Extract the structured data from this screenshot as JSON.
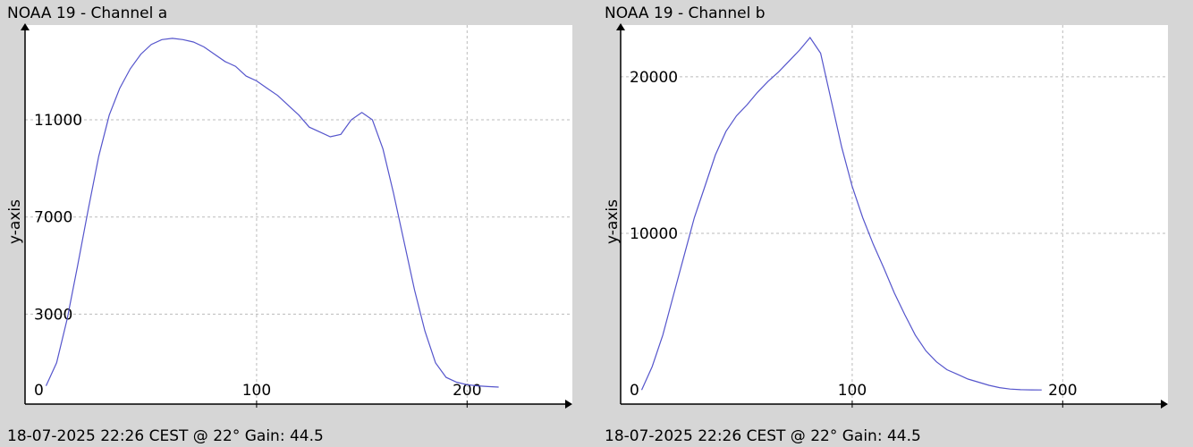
{
  "chart_data": [
    {
      "type": "line",
      "title": "NOAA 19 - Channel a",
      "ylabel": "y-axis",
      "xlim": [
        -10,
        250
      ],
      "ylim": [
        -700,
        14900
      ],
      "xticks": [
        0,
        100,
        200
      ],
      "yticks": [
        3000,
        7000,
        11000
      ],
      "grid": true,
      "line_color": "#5555cc",
      "footer": "18-07-2025 22:26 CEST @ 22° Gain: 44.5",
      "series": [
        {
          "x": [
            0,
            5,
            10,
            15,
            20,
            25,
            30,
            35,
            40,
            45,
            50,
            55,
            60,
            65,
            70,
            75,
            80,
            85,
            90,
            95,
            100,
            105,
            110,
            115,
            120,
            125,
            130,
            135,
            140,
            145,
            150,
            155,
            160,
            165,
            170,
            175,
            180,
            185,
            190,
            195,
            200,
            205,
            210,
            215
          ],
          "y": [
            50,
            1000,
            2800,
            5000,
            7300,
            9500,
            11200,
            12300,
            13100,
            13700,
            14100,
            14300,
            14350,
            14300,
            14200,
            14000,
            13700,
            13400,
            13200,
            12800,
            12600,
            12300,
            12000,
            11600,
            11200,
            10700,
            10500,
            10300,
            10400,
            11000,
            11300,
            11000,
            9800,
            8000,
            6000,
            4000,
            2300,
            1000,
            400,
            200,
            100,
            50,
            20,
            0
          ]
        }
      ]
    },
    {
      "type": "line",
      "title": "NOAA 19 - Channel b",
      "ylabel": "y-axis",
      "xlim": [
        -10,
        250
      ],
      "ylim": [
        -900,
        23300
      ],
      "xticks": [
        0,
        100,
        200
      ],
      "yticks": [
        10000,
        20000
      ],
      "grid": true,
      "line_color": "#5555cc",
      "footer": "18-07-2025 22:26 CEST @ 22° Gain: 44.5",
      "series": [
        {
          "x": [
            0,
            5,
            10,
            15,
            20,
            25,
            30,
            35,
            40,
            45,
            50,
            55,
            60,
            65,
            70,
            75,
            80,
            85,
            90,
            95,
            100,
            105,
            110,
            115,
            120,
            125,
            130,
            135,
            140,
            145,
            150,
            155,
            160,
            165,
            170,
            175,
            180,
            185,
            190
          ],
          "y": [
            0,
            1500,
            3500,
            6000,
            8500,
            11000,
            13000,
            15000,
            16500,
            17500,
            18200,
            19000,
            19700,
            20300,
            21000,
            21700,
            22500,
            21500,
            18500,
            15500,
            13000,
            11000,
            9300,
            7800,
            6200,
            4800,
            3500,
            2500,
            1800,
            1300,
            1000,
            700,
            500,
            300,
            150,
            60,
            20,
            5,
            0
          ]
        }
      ]
    }
  ]
}
